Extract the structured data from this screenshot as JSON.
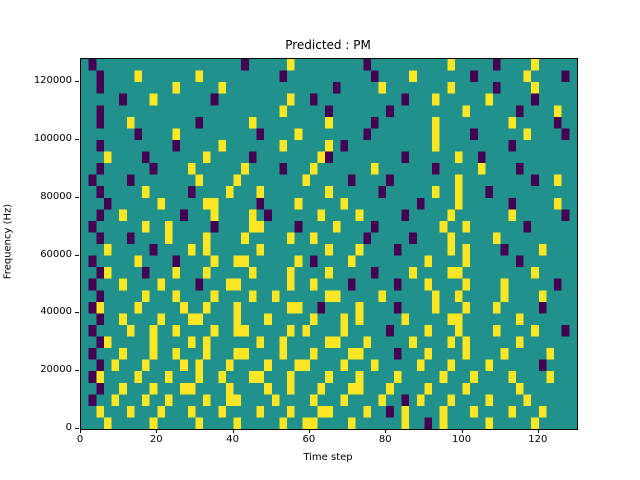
{
  "figure": {
    "title": "Predicted : PM",
    "xlabel": "Time step",
    "ylabel": "Frequency (Hz)"
  },
  "chart_data": {
    "type": "heatmap",
    "title": "Predicted : PM",
    "xlabel": "Time step",
    "ylabel": "Frequency (Hz)",
    "x_range": [
      0,
      130
    ],
    "y_range": [
      0,
      128000
    ],
    "x_ticks": [
      0,
      20,
      40,
      60,
      80,
      100,
      120
    ],
    "y_ticks": [
      0,
      20000,
      40000,
      60000,
      80000,
      100000,
      120000
    ],
    "grid": false,
    "legend": "none",
    "cell_size": {
      "time_steps": 2,
      "hz": 4000
    },
    "colors": {
      "background_mid": "#21918c",
      "high": "#fde725",
      "low": "#440154"
    },
    "row_encoding": {
      ".": "mid",
      "y": "high",
      "p": "low"
    },
    "rows_top_to_bottom": [
      ".p...................p.....y.........p..........y.....p....y....",
      "..p....y.......y..........p...........p....y.......p......y....p",
      "..p.........y.....y..............p.....y........y.....p....y....",
      ".....p...y.......p.........y..p...........p...y......y.....p....",
      "..p.......................y.....p.......p.........y......p....y.",
      "..p...y........p......y.........y.....p.......y.........y.....p.",
      ".......p....y..........p....y........p........y....p......y....p",
      "..p.........p.....y.......y.....y.p...........y.........p.......",
      "...y....p.......y.....p........yp.........p......y..p...........",
      "..p......p....y......y....p...y.......y.......p.....y....p......",
      ".p....p........y....y........y.....p....p........y.........p..y.",
      "..p.....y.....p....y...y........y......p......y..y...p..........",
      "...p......y.....yy.....p....y.....y.........p....y......p.....y.",
      "..p..y.......p...y....y.p......y....y.....p.....y.......y......p",
      ".p......y..y.....p....yy....p....y....p........y..y.......p.....",
      "..p...p....y....y....y.....y..y......p.....p....y.....y.........",
      "...y.....p....y.y......y........y...y....p......y.y....p....y...",
      ".p.....y....p....y..yy......y.p....y.........y....y......p......",
      "..py....p...y...y.....y....y....y.....p....y....yy.........y....",
      ".p...y....y....p...yy......y..y....p.....p...y....y....y......p.",
      "..p.....y...y....y....y..y......yy.....y......y..y.....y....y...",
      ".py....y.....y..y...y......yy..p....y....p....y...y...y.....p...",
      "..p..y....y...yy....y...y.....y...y.y.....y.....yy.......y......",
      ".p....y..y..y....y..yy.....y.y....y.....p....y...y....y....y...p",
      "..py.....y....y.y......y..y.....yy...y.....y....y.y......y......",
      ".p...y...y..y...y...yy....y...y....yy....p...y....y....y.....y..",
      "..p.y...y....y.y...y....y...yy....y...y.....y...y....y......p...",
      ".py....y...y...y..y...yy...y....y...y....y.....y...y....y....y..",
      "..p..y...y...yy....y....y..y...y...yy...y....y....y......y......",
      ".p..y...y..y....y..yy....y....y...y....y..p.y...y....y....y.....",
      "..y...y...y...y...y....y...y...yy....y..p.y....y...y....y...y...",
      "...y.....y.....y....y.....y..yy....y......y..p.y.....y.....y...."
    ]
  }
}
